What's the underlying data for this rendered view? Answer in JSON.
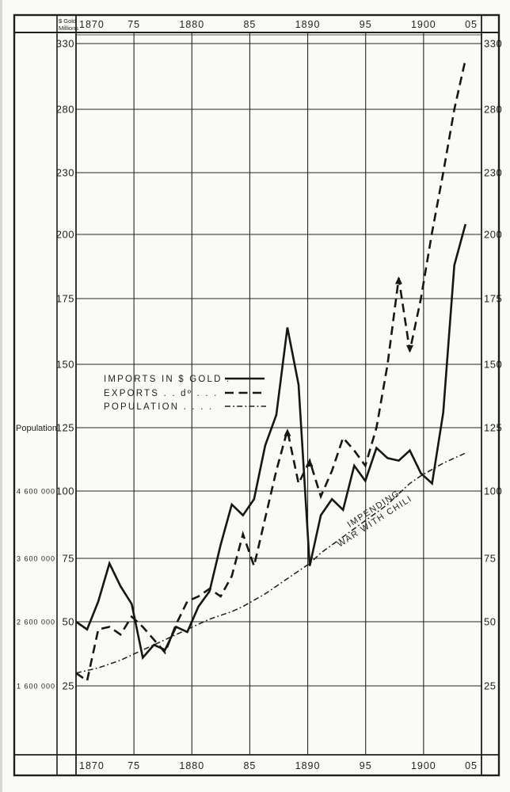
{
  "ink_color": "#1f1f1d",
  "paper_color": "#fafaf6",
  "header": {
    "unit_label_line1": "$ Gold",
    "unit_label_line2": "Millions"
  },
  "axes": {
    "population_axis_title": "Population",
    "population_scale": [
      {
        "label": "4 600 000",
        "at_dollar_value": 100
      },
      {
        "label": "3 600 000",
        "at_dollar_value": 75
      },
      {
        "label": "2 600 000",
        "at_dollar_value": 50
      },
      {
        "label": "1 600 000",
        "at_dollar_value": 25
      }
    ],
    "dollar_ticks": [
      330,
      280,
      230,
      200,
      175,
      150,
      125,
      100,
      75,
      50,
      25
    ],
    "year_ticks": [
      {
        "label": "1870",
        "year": 1870
      },
      {
        "label": "75",
        "year": 1875
      },
      {
        "label": "1880",
        "year": 1880
      },
      {
        "label": "85",
        "year": 1885
      },
      {
        "label": "1890",
        "year": 1890
      },
      {
        "label": "95",
        "year": 1895
      },
      {
        "label": "1900",
        "year": 1900
      },
      {
        "label": "05",
        "year": 1905
      }
    ]
  },
  "legend": [
    {
      "label": "IMPORTS IN $ GOLD .",
      "style": "solid"
    },
    {
      "label": "EXPORTS . . dº . . .",
      "style": "dashed"
    },
    {
      "label": "POPULATION  . . . .",
      "style": "dashdot"
    }
  ],
  "annotation": {
    "line1": "IMPENDING",
    "line2": "WAR WITH CHILI"
  },
  "chart_data": {
    "type": "line",
    "title": "",
    "xlabel": "Year (top and bottom axes)",
    "ylabel": "$ Gold Millions (left/right); Population on secondary left scale",
    "x": [
      1870,
      1871,
      1872,
      1873,
      1874,
      1875,
      1876,
      1877,
      1878,
      1879,
      1880,
      1881,
      1882,
      1883,
      1884,
      1885,
      1886,
      1887,
      1888,
      1889,
      1890,
      1891,
      1892,
      1893,
      1894,
      1895,
      1896,
      1897,
      1898,
      1899,
      1900,
      1901,
      1902,
      1903,
      1904,
      1905
    ],
    "series": [
      {
        "name": "Imports in $ Gold",
        "style": "solid",
        "values": [
          50,
          47,
          58,
          73,
          64,
          57,
          36,
          41,
          39,
          48,
          46,
          56,
          62,
          80,
          95,
          91,
          97,
          118,
          130,
          164,
          142,
          72,
          91,
          97,
          93,
          110,
          104,
          117,
          113,
          112,
          116,
          107,
          103,
          131,
          188,
          205
        ]
      },
      {
        "name": "Exports",
        "style": "dashed",
        "values": [
          30,
          27,
          47,
          48,
          45,
          52,
          48,
          43,
          38,
          49,
          58,
          60,
          63,
          60,
          68,
          84,
          72,
          90,
          108,
          124,
          103,
          112,
          98,
          108,
          121,
          116,
          110,
          125,
          150,
          183,
          155,
          175,
          201,
          230,
          280,
          318
        ]
      },
      {
        "name": "Population",
        "style": "dashdot",
        "values": [
          30,
          31,
          32,
          33.5,
          35,
          37,
          39,
          41,
          43,
          45,
          47,
          49,
          51,
          52.5,
          54,
          56,
          58.5,
          61,
          64,
          67,
          70,
          73,
          77,
          80,
          83,
          86,
          89,
          92,
          95,
          99,
          103,
          106,
          108.5,
          111,
          113,
          115
        ],
        "scale_note": "read on secondary scale: 25 = 1 600 000, 50 = 2 600 000, 75 = 3 600 000, 100 = 4 600 000 people"
      }
    ],
    "arrow_markers": [
      {
        "series": "Exports",
        "year": 1889,
        "dir": "up"
      },
      {
        "series": "Exports",
        "year": 1891,
        "dir": "up"
      },
      {
        "series": "Exports",
        "year": 1899,
        "dir": "up"
      },
      {
        "series": "Exports",
        "year": 1900,
        "dir": "down"
      }
    ],
    "y_ticks": [
      25,
      50,
      75,
      100,
      125,
      150,
      175,
      200,
      230,
      280,
      330
    ],
    "y_scale_note": "evenly spaced gridlines with non-linear values: 25-unit steps up to 200, then 230, 280, 330 (compressed scale above 200)",
    "x_range": [
      1870,
      1905
    ],
    "grid": true,
    "legend_position": "center-left"
  }
}
